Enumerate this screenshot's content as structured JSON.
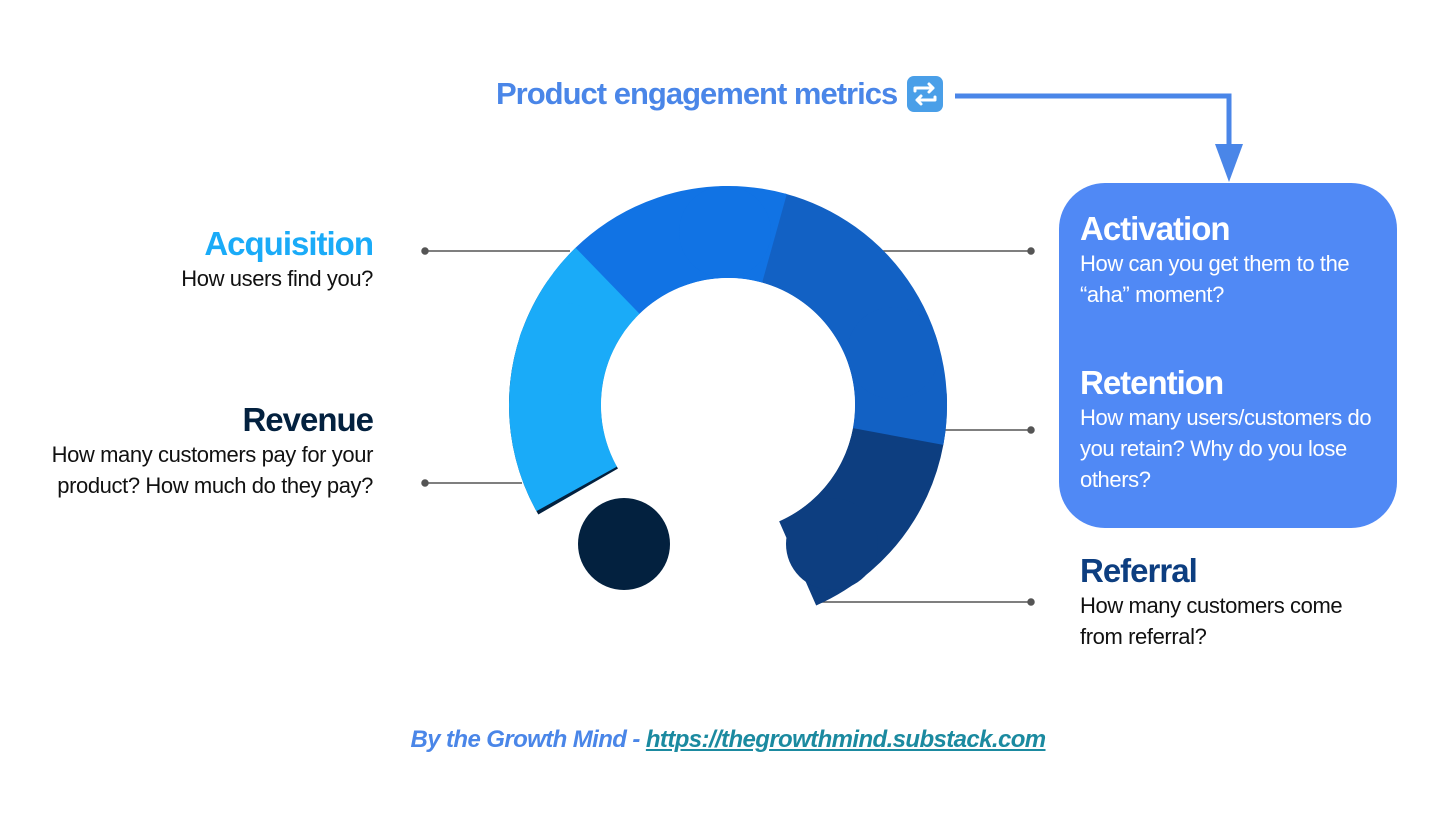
{
  "header": {
    "title": "Product engagement metrics",
    "title_icon": "repeat-arrows-icon"
  },
  "stages": {
    "acquisition": {
      "title": "Acquisition",
      "question": "How users find you?",
      "color": "#1aabf8"
    },
    "activation": {
      "title": "Activation",
      "question": "How can you get them to the “aha” moment?",
      "color": "#1173e4"
    },
    "retention": {
      "title": "Retention",
      "question": "How many users/customers do you retain? Why do you lose others?",
      "color": "#1261c4"
    },
    "referral": {
      "title": "Referral",
      "question": "How many customers come from referral?",
      "color": "#0d3e80"
    },
    "revenue": {
      "title": "Revenue",
      "question": "How many customers pay for your product? How much do they pay?",
      "color": "#03213f"
    }
  },
  "highlight_panel_color": "#5089f5",
  "footer": {
    "by_text": "By the Growth Mind - ",
    "link_text": "https://thegrowthmind.substack.com"
  }
}
